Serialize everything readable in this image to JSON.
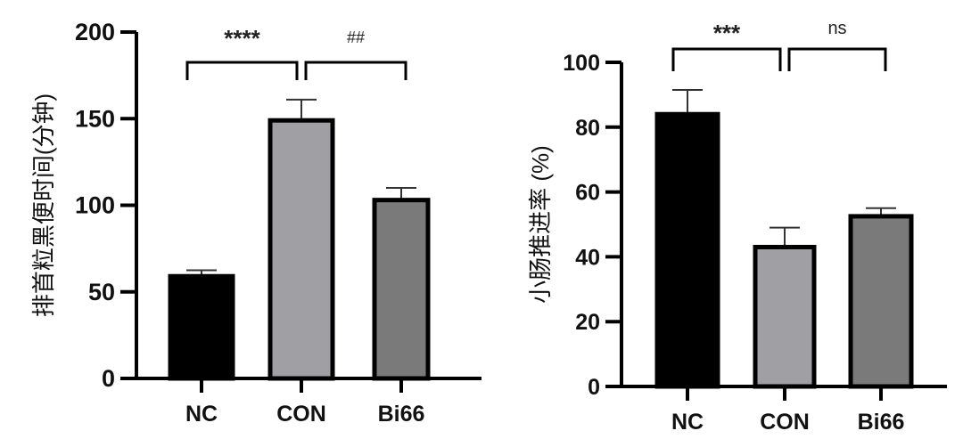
{
  "chart_data": [
    {
      "type": "bar",
      "title": "",
      "xlabel": "",
      "ylabel": "排首粒黑便时间(分钟)",
      "ylim": [
        0,
        200
      ],
      "yticks": [
        0,
        50,
        100,
        150,
        200
      ],
      "categories": [
        "NC",
        "CON",
        "Bi66"
      ],
      "values": [
        59,
        149,
        103
      ],
      "errors": [
        3.5,
        12,
        7
      ],
      "colors": [
        "#000000",
        "#a0a0a4",
        "#7a7a7a"
      ],
      "significance": [
        {
          "from": 0,
          "to": 1,
          "label": "****"
        },
        {
          "from": 1,
          "to": 2,
          "label": "##"
        }
      ]
    },
    {
      "type": "bar",
      "title": "",
      "xlabel": "",
      "ylabel": "小肠推进率 (%)",
      "ylim": [
        0,
        100
      ],
      "yticks": [
        0,
        20,
        40,
        60,
        80,
        100
      ],
      "categories": [
        "NC",
        "CON",
        "Bi66"
      ],
      "values": [
        84,
        43,
        52.5
      ],
      "errors": [
        7.5,
        6,
        2.5
      ],
      "colors": [
        "#000000",
        "#a0a0a4",
        "#7a7a7a"
      ],
      "significance": [
        {
          "from": 0,
          "to": 1,
          "label": "***"
        },
        {
          "from": 1,
          "to": 2,
          "label": "ns"
        }
      ]
    }
  ]
}
